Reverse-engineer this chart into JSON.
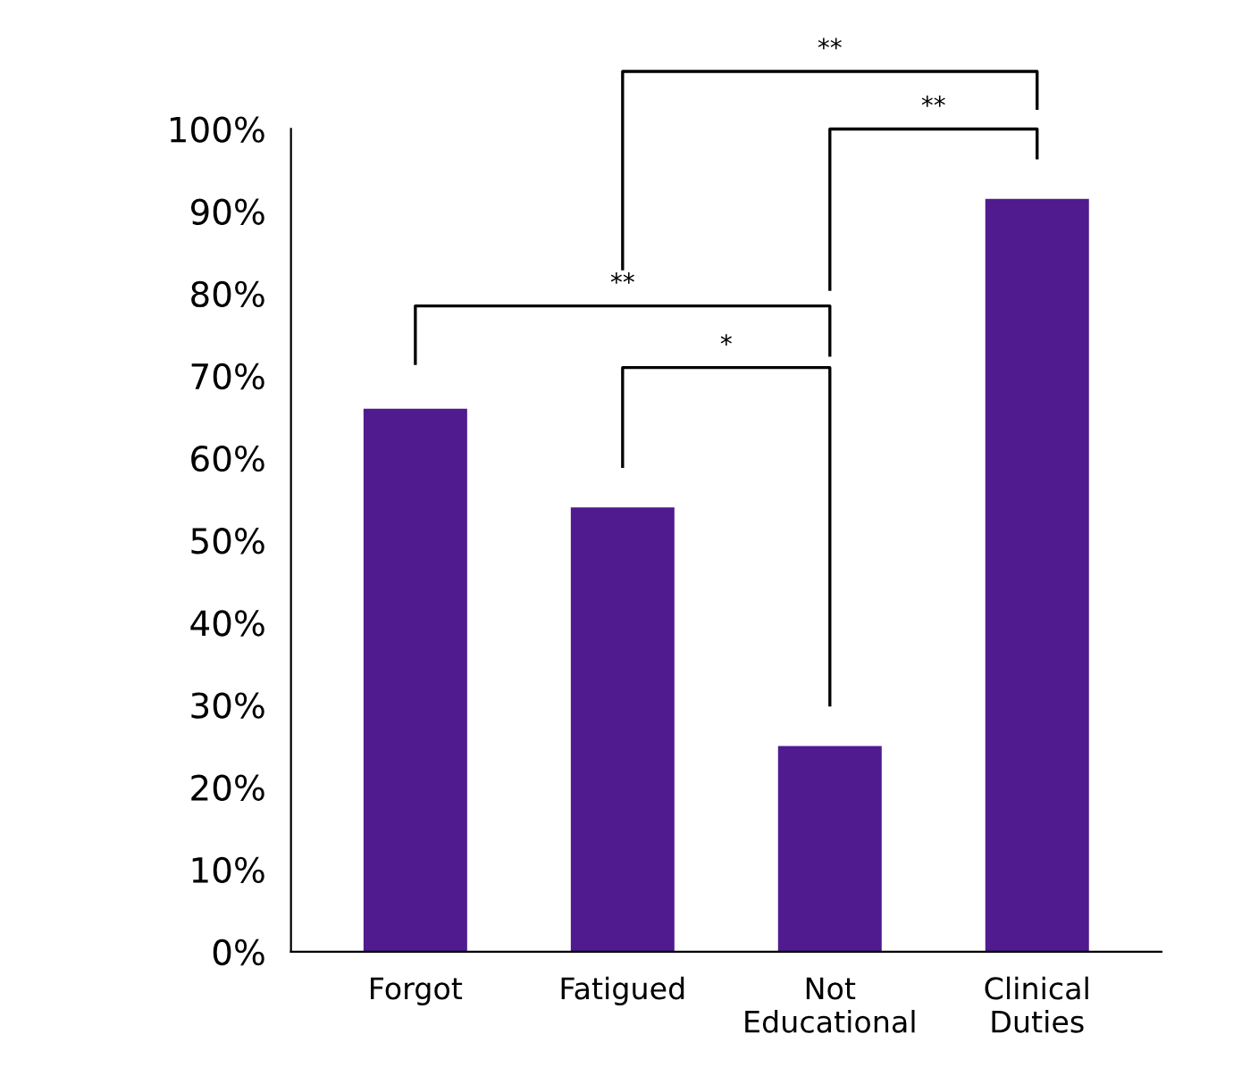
{
  "chart_data": {
    "type": "bar",
    "categories": [
      "Forgot",
      "Fatigued",
      "Not\nEducational",
      "Clinical\nDuties"
    ],
    "values": [
      66,
      54,
      25,
      91.5
    ],
    "color": "#501b8f",
    "ylim": [
      0,
      100
    ],
    "yticks": [
      {
        "value": 0,
        "label": "0%"
      },
      {
        "value": 10,
        "label": "10%"
      },
      {
        "value": 20,
        "label": "20%"
      },
      {
        "value": 30,
        "label": "30%"
      },
      {
        "value": 40,
        "label": "40%"
      },
      {
        "value": 50,
        "label": "50%"
      },
      {
        "value": 60,
        "label": "60%"
      },
      {
        "value": 70,
        "label": "70%"
      },
      {
        "value": 80,
        "label": "80%"
      },
      {
        "value": 90,
        "label": "90%"
      },
      {
        "value": 100,
        "label": "100%"
      }
    ],
    "grid": false,
    "annotations": [
      "**",
      "**",
      "**",
      "*"
    ]
  }
}
